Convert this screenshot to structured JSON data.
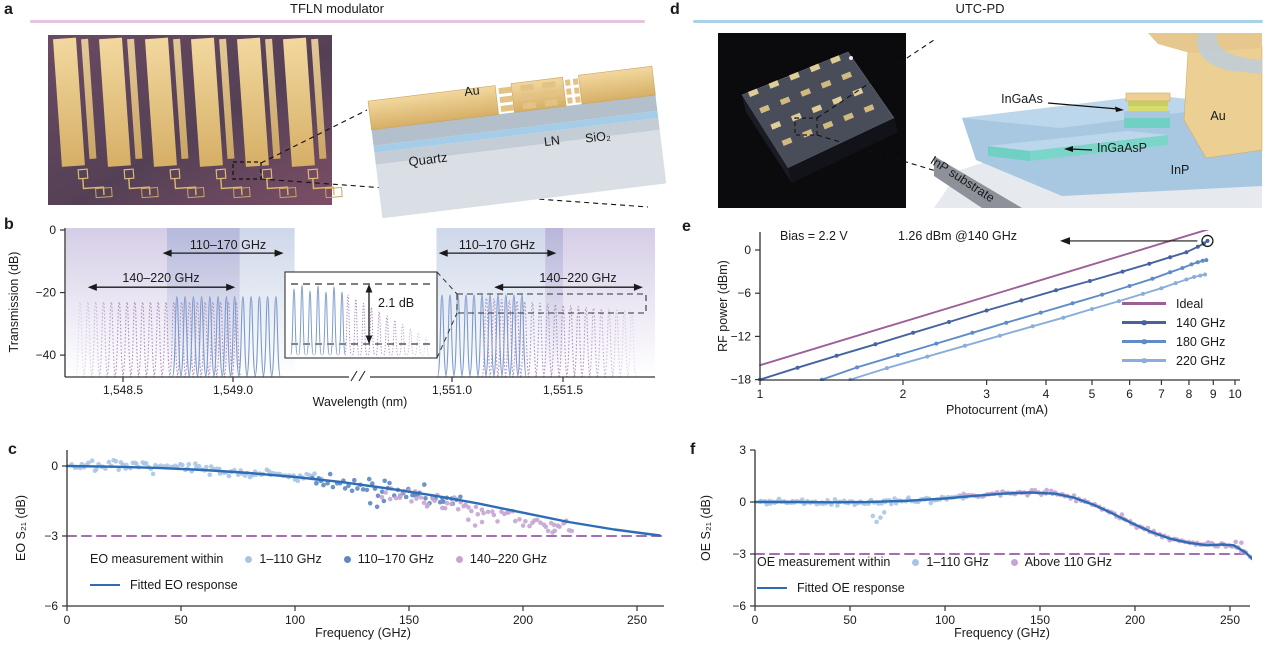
{
  "panels": {
    "a": {
      "letter": "a",
      "title": "TFLN modulator",
      "rule_color": "#e7c3e1",
      "schematic_labels": {
        "au": "Au",
        "quartz": "Quartz",
        "ln": "LN",
        "sio2": "SiO₂"
      }
    },
    "b": {
      "letter": "b",
      "band_labels": {
        "left_110": "110–170 GHz",
        "left_140": "140–220 GHz",
        "right_110": "110–170 GHz",
        "right_140": "140–220 GHz"
      },
      "inset_label": "2.1 dB"
    },
    "c": {
      "letter": "c"
    },
    "d": {
      "letter": "d",
      "title": "UTC-PD",
      "rule_color": "#a9d2e7",
      "schematic_labels": {
        "ingaas": "InGaAs",
        "ingaasp": "InGaAsP",
        "inp_substrate": "InP substrate",
        "au": "Au",
        "inp": "InP"
      }
    },
    "e": {
      "letter": "e",
      "annotations": {
        "bias": "Bias = 2.2 V",
        "peak": "1.26 dBm @140 GHz"
      }
    },
    "f": {
      "letter": "f"
    }
  },
  "chart_data": [
    {
      "panel": "b",
      "type": "line",
      "title": "Transmission spectra of TFLN modulator filter bank",
      "xlabel": "Wavelength (nm)",
      "ylabel": "Transmission (dB)",
      "ylim": [
        -47,
        0
      ],
      "yticks": [
        0,
        -20,
        -40
      ],
      "ytick_labels": [
        "0",
        "−20",
        "−40"
      ],
      "x_axis_break": true,
      "x_left": {
        "ticks": [
          1548.5,
          1549.0
        ],
        "tick_labels": [
          "1,548.5",
          "1,549.0"
        ]
      },
      "x_right": {
        "ticks": [
          1551.0,
          1551.5
        ],
        "tick_labels": [
          "1,551.0",
          "1,551.5"
        ]
      },
      "combs": [
        {
          "cluster": "left",
          "style": "dashed",
          "color": "#b08cc2",
          "start_nm": 1548.305,
          "step_nm": 0.0355,
          "count": 21,
          "top_db": -23.0,
          "fade_in": 5
        },
        {
          "cluster": "left",
          "style": "solid",
          "color": "#7d9bce",
          "start_nm": 1548.745,
          "step_nm": 0.0375,
          "count": 13,
          "top_db": -21.3
        },
        {
          "cluster": "right",
          "style": "solid",
          "color": "#7d9bce",
          "start_nm": 1550.955,
          "step_nm": 0.036,
          "count": 11,
          "top_db": -20.8
        },
        {
          "cluster": "right",
          "style": "dashed",
          "color": "#b08cc2",
          "start_nm": 1551.155,
          "step_nm": 0.0345,
          "count": 20,
          "top_db": -21.8,
          "droop_db": 4.5,
          "fade_out": 8
        }
      ],
      "bands": [
        {
          "cluster": "left",
          "tint": "purple",
          "label": "140–220 GHz",
          "x1": 1548.24,
          "x2": 1549.03
        },
        {
          "cluster": "left",
          "tint": "blue",
          "label": "110–170 GHz",
          "x1": 1548.7,
          "x2": 1549.28
        },
        {
          "cluster": "right",
          "tint": "blue",
          "label": "110–170 GHz",
          "x1": 1550.93,
          "x2": 1551.5
        },
        {
          "cluster": "right",
          "tint": "purple",
          "label": "140–220 GHz",
          "x1": 1551.42,
          "x2": 1551.92
        }
      ],
      "range_arrows": [
        {
          "cluster": "left",
          "label": "110–170 GHz",
          "x1": 1548.68,
          "x2": 1549.23,
          "db": -7.4
        },
        {
          "cluster": "left",
          "label": "140–220 GHz",
          "x1": 1548.34,
          "x2": 1549.01,
          "db": -18.3
        },
        {
          "cluster": "right",
          "label": "110–170 GHz",
          "x1": 1550.94,
          "x2": 1551.47,
          "db": -7.4
        },
        {
          "cluster": "right",
          "label": "140–220 GHz",
          "x1": 1551.19,
          "x2": 1551.86,
          "db": -18.3
        }
      ],
      "inset": {
        "annotation": "2.1 dB"
      }
    },
    {
      "panel": "c",
      "type": "scatter",
      "title": "EO response of TFLN modulator",
      "xlabel": "Frequency (GHz)",
      "ylabel": "EO S₂₁ (dB)",
      "xlim": [
        0,
        262
      ],
      "xticks": [
        0,
        50,
        100,
        150,
        200,
        250
      ],
      "ylim": [
        -6,
        0.75
      ],
      "yticks": [
        0,
        -3,
        -6
      ],
      "ytick_labels": [
        "0",
        "−3",
        "−6"
      ],
      "ref_line": {
        "y": -3,
        "color": "#a46fb0"
      },
      "legend_prefix": "EO measurement within",
      "fit": {
        "label": "Fitted EO response",
        "color": "#2e6db4",
        "points": [
          [
            0,
            0
          ],
          [
            20,
            -0.03
          ],
          [
            40,
            -0.08
          ],
          [
            60,
            -0.17
          ],
          [
            80,
            -0.3
          ],
          [
            100,
            -0.47
          ],
          [
            120,
            -0.68
          ],
          [
            140,
            -0.95
          ],
          [
            160,
            -1.25
          ],
          [
            180,
            -1.6
          ],
          [
            200,
            -2.0
          ],
          [
            220,
            -2.4
          ],
          [
            240,
            -2.72
          ],
          [
            260,
            -2.98
          ]
        ]
      },
      "series": [
        {
          "label": "1–110 GHz",
          "color": "#a9c5e6",
          "x_range": [
            2,
            112
          ],
          "count": 105,
          "jitter": 0.33,
          "bias": 0.02,
          "seed": 7
        },
        {
          "label": "110–170 GHz",
          "color": "#5e87c2",
          "x_range": [
            107,
            173
          ],
          "count": 50,
          "jitter": 0.55,
          "bias": -0.05,
          "seed": 11,
          "extra": [
            [
              133,
              -1.6
            ],
            [
              136,
              -1.75
            ],
            [
              139,
              -1.5
            ]
          ]
        },
        {
          "label": "140–220 GHz",
          "color": "#c5a5d4",
          "x_range": [
            138,
            222
          ],
          "count": 62,
          "jitter": 0.5,
          "bias": -0.25,
          "seed": 23,
          "extra": [
            [
              176,
              -2.3
            ],
            [
              179,
              -2.55
            ],
            [
              182,
              -2.4
            ],
            [
              210,
              -2.6
            ],
            [
              213,
              -2.85
            ],
            [
              216,
              -2.6
            ],
            [
              219,
              -2.35
            ]
          ]
        }
      ]
    },
    {
      "panel": "e",
      "type": "line-logx",
      "title": "Saturation of UTC-PD",
      "xlabel": "Photocurrent (mA)",
      "ylabel": "RF power (dBm)",
      "xlim": [
        1,
        10
      ],
      "xticks": [
        1,
        2,
        3,
        4,
        5,
        6,
        7,
        8,
        9,
        10
      ],
      "ylim": [
        -18,
        2.5
      ],
      "yticks": [
        0,
        -6,
        -12,
        -18
      ],
      "ytick_labels": [
        "0",
        "−6",
        "−12",
        "−18"
      ],
      "annotations": {
        "bias": "Bias = 2.2 V",
        "peak": "1.26 dBm @140 GHz"
      },
      "peak_marker": {
        "x": 8.75,
        "y": 1.26
      },
      "series": [
        {
          "label": "Ideal",
          "color": "#9c6096",
          "markers": false,
          "points": [
            [
              1,
              -16
            ],
            [
              9.6,
              3.64
            ]
          ]
        },
        {
          "label": "140 GHz",
          "color": "#46639f",
          "markers": true,
          "points": [
            [
              1,
              -18
            ],
            [
              1.2,
              -16.35
            ],
            [
              1.45,
              -14.7
            ],
            [
              1.75,
              -13.1
            ],
            [
              2.1,
              -11.5
            ],
            [
              2.5,
              -10.0
            ],
            [
              3.0,
              -8.4
            ],
            [
              3.55,
              -7.0
            ],
            [
              4.2,
              -5.6
            ],
            [
              4.95,
              -4.3
            ],
            [
              5.8,
              -3.0
            ],
            [
              6.6,
              -1.9
            ],
            [
              7.3,
              -1.0
            ],
            [
              7.9,
              -0.3
            ],
            [
              8.35,
              0.45
            ],
            [
              8.6,
              0.9
            ],
            [
              8.75,
              1.26
            ]
          ]
        },
        {
          "label": "180 GHz",
          "color": "#5f8cc9",
          "markers": true,
          "points": [
            [
              1.35,
              -18
            ],
            [
              1.6,
              -16.3
            ],
            [
              1.95,
              -14.6
            ],
            [
              2.35,
              -13.0
            ],
            [
              2.8,
              -11.5
            ],
            [
              3.3,
              -10.1
            ],
            [
              3.9,
              -8.7
            ],
            [
              4.55,
              -7.4
            ],
            [
              5.25,
              -6.2
            ],
            [
              6.0,
              -5.0
            ],
            [
              6.7,
              -4.0
            ],
            [
              7.3,
              -3.1
            ],
            [
              7.75,
              -2.5
            ],
            [
              8.1,
              -2.0
            ],
            [
              8.35,
              -1.7
            ],
            [
              8.55,
              -1.5
            ],
            [
              8.7,
              -1.4
            ]
          ]
        },
        {
          "label": "220 GHz",
          "color": "#8badd9",
          "markers": true,
          "points": [
            [
              1.55,
              -18
            ],
            [
              1.85,
              -16.4
            ],
            [
              2.25,
              -14.8
            ],
            [
              2.7,
              -13.3
            ],
            [
              3.2,
              -11.9
            ],
            [
              3.75,
              -10.6
            ],
            [
              4.35,
              -9.4
            ],
            [
              5.0,
              -8.2
            ],
            [
              5.7,
              -7.1
            ],
            [
              6.4,
              -6.1
            ],
            [
              7.0,
              -5.3
            ],
            [
              7.5,
              -4.6
            ],
            [
              7.9,
              -4.1
            ],
            [
              8.2,
              -3.75
            ],
            [
              8.45,
              -3.55
            ],
            [
              8.65,
              -3.4
            ]
          ]
        }
      ]
    },
    {
      "panel": "f",
      "type": "scatter",
      "title": "OE response of UTC-PD",
      "xlabel": "Frequency (GHz)",
      "ylabel": "OE S₂₁ (dB)",
      "xlim": [
        0,
        263
      ],
      "xticks": [
        0,
        50,
        100,
        150,
        200,
        250
      ],
      "ylim": [
        -6,
        3
      ],
      "yticks": [
        3,
        0,
        -3,
        -6
      ],
      "ytick_labels": [
        "3",
        "0",
        "−3",
        "−6"
      ],
      "ref_line": {
        "y": -3,
        "color": "#a46fb0"
      },
      "legend_prefix": "OE measurement within",
      "fit": {
        "label": "Fitted OE response",
        "color": "#2e6db4",
        "points": [
          [
            0,
            0
          ],
          [
            20,
            0.0
          ],
          [
            40,
            -0.02
          ],
          [
            60,
            0.0
          ],
          [
            80,
            0.07
          ],
          [
            100,
            0.2
          ],
          [
            115,
            0.35
          ],
          [
            130,
            0.48
          ],
          [
            145,
            0.55
          ],
          [
            158,
            0.48
          ],
          [
            168,
            0.25
          ],
          [
            178,
            -0.15
          ],
          [
            188,
            -0.65
          ],
          [
            198,
            -1.2
          ],
          [
            208,
            -1.7
          ],
          [
            218,
            -2.1
          ],
          [
            228,
            -2.35
          ],
          [
            238,
            -2.5
          ],
          [
            246,
            -2.45
          ],
          [
            252,
            -2.5
          ],
          [
            258,
            -2.9
          ],
          [
            263,
            -3.4
          ]
        ]
      },
      "series": [
        {
          "label": "1–110 GHz",
          "color": "#a9c5e6",
          "x_range": [
            2,
            112
          ],
          "count": 95,
          "jitter": 0.28,
          "bias": 0,
          "seed": 5,
          "extra": [
            [
              62,
              -0.8
            ],
            [
              64,
              -1.15
            ],
            [
              66,
              -0.9
            ],
            [
              68,
              -0.6
            ]
          ]
        },
        {
          "label": "Above 110 GHz",
          "color": "#c5a5d4",
          "x_range": [
            108,
            262
          ],
          "count": 115,
          "jitter": 0.22,
          "bias": 0,
          "seed": 9,
          "extra": [
            [
              253,
              -2.3
            ],
            [
              256,
              -2.35
            ]
          ]
        }
      ]
    }
  ]
}
